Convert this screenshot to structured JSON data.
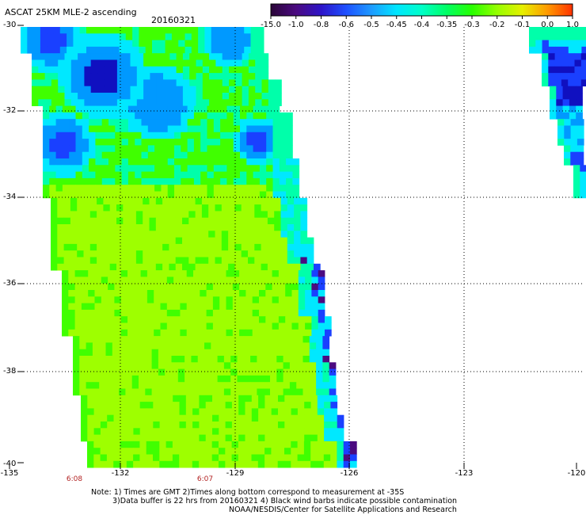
{
  "title": "ASCAT 25KM MLE-2 ascending",
  "date": "20160321",
  "colorbar": {
    "ticks": [
      "-15.0",
      "-1.0",
      "-0.8",
      "-0.6",
      "-0.5",
      "-0.45",
      "-0.4",
      "-0.35",
      "-0.3",
      "-0.2",
      "-0.1",
      "0.0",
      "1.0"
    ],
    "colors": [
      "#2a0638",
      "#4b0a80",
      "#2d14c8",
      "#1e50ff",
      "#1e9bff",
      "#00e6ff",
      "#00ffc8",
      "#00ff64",
      "#28ff00",
      "#96ff00",
      "#e6f000",
      "#ff9a00",
      "#ff3200"
    ]
  },
  "axes": {
    "lat_labels": [
      "-30",
      "-32",
      "-34",
      "-36",
      "-38",
      "-40"
    ],
    "lon_labels": [
      "-135",
      "-132",
      "-129",
      "-126",
      "-123",
      "-120"
    ]
  },
  "times": [
    "6:08",
    "6:07"
  ],
  "notes": [
    "Note: 1) Times are GMT 2)Times along bottom correspond to measurement at -35S",
    "3)Data buffer is 22 hrs from 20160321 4) Black wind barbs indicate possible contamination",
    "NOAA/NESDIS/Center for Satellite Applications and Research"
  ],
  "map_colors": {
    "green_yellow": "#9eff00",
    "green": "#40ff00",
    "aqua": "#00ffaa",
    "cyan": "#00e8ff",
    "sky": "#0099ff",
    "blue": "#1a40ff",
    "deep_blue": "#1010c0",
    "purple": "#4b0a80"
  }
}
